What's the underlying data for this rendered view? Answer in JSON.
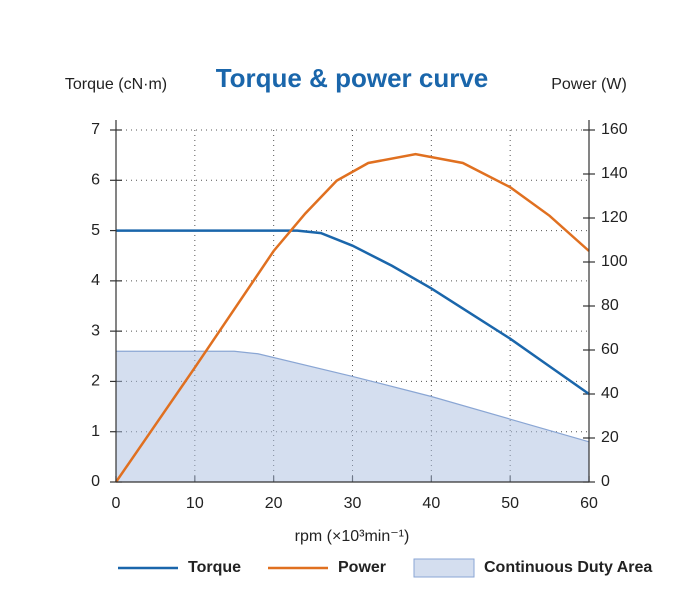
{
  "chart_data": {
    "type": "line",
    "title": "Torque & power curve",
    "y_label": "Torque (cN·m)",
    "y2_label": "Power (W)",
    "x_label": "rpm (×10³min⁻¹)",
    "xlim": [
      0,
      60
    ],
    "xticks": [
      0,
      10,
      20,
      30,
      40,
      50,
      60
    ],
    "ylim": [
      0,
      7
    ],
    "yticks": [
      0,
      1,
      2,
      3,
      4,
      5,
      6,
      7
    ],
    "y2lim": [
      0,
      160
    ],
    "y2ticks": [
      0,
      20,
      40,
      60,
      80,
      100,
      120,
      140,
      160
    ],
    "grid": true,
    "series": [
      {
        "name": "Continuous Duty Area",
        "kind": "area",
        "color": "#a9bde0",
        "edge": "#8aa6d4",
        "x": [
          0,
          15,
          18,
          30,
          40,
          50,
          60
        ],
        "values": [
          2.6,
          2.6,
          2.55,
          2.1,
          1.7,
          1.25,
          0.8
        ]
      },
      {
        "name": "Torque",
        "kind": "line",
        "color": "#1a66ab",
        "x": [
          0,
          10,
          20,
          23,
          26,
          30,
          35,
          40,
          45,
          50,
          55,
          60
        ],
        "values": [
          5,
          5,
          5,
          5,
          4.95,
          4.7,
          4.3,
          3.85,
          3.35,
          2.85,
          2.3,
          1.75
        ]
      },
      {
        "name": "Power",
        "kind": "line",
        "color": "#e07020",
        "axis": "y2",
        "x": [
          0,
          10,
          20,
          24,
          28,
          32,
          38,
          44,
          50,
          55,
          60
        ],
        "values": [
          0,
          52,
          105,
          122,
          137,
          145,
          149,
          145,
          134,
          121,
          105
        ]
      }
    ]
  }
}
